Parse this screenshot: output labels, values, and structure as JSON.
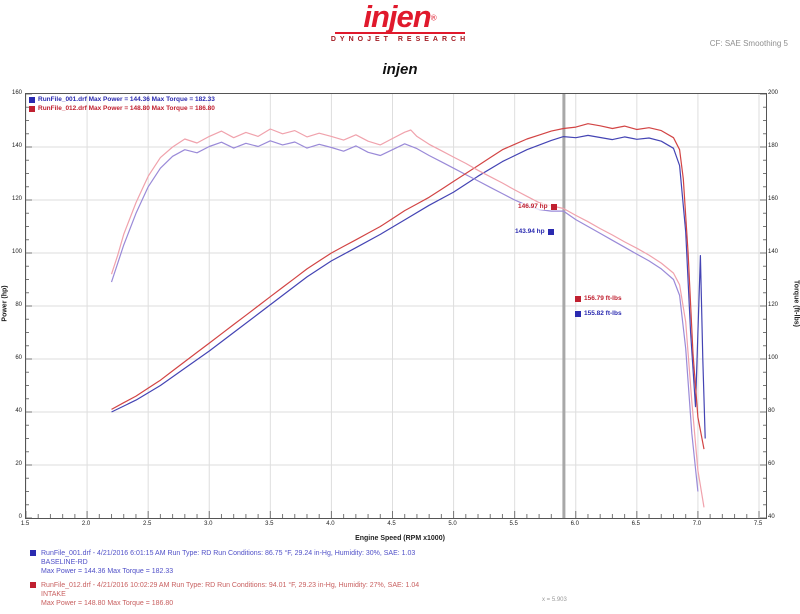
{
  "header": {
    "logo_text": "injen",
    "logo_registered": "®",
    "logo_subtitle": "DYNOJET RESEARCH",
    "top_right_note": "CF: SAE    Smoothing 5",
    "chart_title": "injen"
  },
  "colors": {
    "accent_red": "#e0192c",
    "baseline_power": "#4444b4",
    "baseline_torque": "#9a8ad8",
    "intake_power": "#d24444",
    "intake_torque": "#f0a2ac",
    "cursor_gray": "#a8a8a8",
    "grid_gray": "#dedede"
  },
  "runs": [
    {
      "file": "RunFile_001.drf",
      "legend": "RunFile_001.drf  Max Power = 144.36   Max Torque = 182.33",
      "marker_color": "#2a2ab0",
      "text_color": "#5050c8",
      "footer1": "RunFile_001.drf - 4/21/2016 6:01:15 AM   Run Type: RD   Run Conditions: 86.75 °F, 29.24 in-Hg, Humidity: 30%, SAE: 1.03",
      "footer2": "BASELINE-RD",
      "footer3": "Max Power = 144.36  Max Torque = 182.33"
    },
    {
      "file": "RunFile_012.drf",
      "legend": "RunFile_012.drf  Max Power = 148.80   Max Torque = 186.80",
      "marker_color": "#c02030",
      "text_color": "#c86060",
      "footer1": "RunFile_012.drf - 4/21/2016 10:02:29 AM   Run Type: RD   Run Conditions: 94.01 °F, 29.23 in-Hg, Humidity: 27%, SAE: 1.04",
      "footer2": "INTAKE",
      "footer3": "Max Power = 148.80  Max Torque = 186.80"
    }
  ],
  "cursor": {
    "x_label": "x = 5.903",
    "power_labels": [
      {
        "text": "146.97 hp",
        "color": "#c02030"
      },
      {
        "text": "143.94 hp",
        "color": "#2a2ab0"
      }
    ],
    "torque_labels": [
      {
        "text": "156.79 ft-lbs",
        "color": "#c02030"
      },
      {
        "text": "155.82 ft-lbs",
        "color": "#2a2ab0"
      }
    ]
  },
  "chart_data": {
    "type": "line",
    "title": "injen",
    "xlabel": "Engine Speed (RPM x1000)",
    "x_range": [
      1.5,
      7.5
    ],
    "x_ticks": [
      "1.5",
      "2.0",
      "2.5",
      "3.0",
      "3.5",
      "4.0",
      "4.5",
      "5.0",
      "5.5",
      "6.0",
      "6.5",
      "7.0",
      "7.5"
    ],
    "y_left": {
      "label": "Power (hp)",
      "range": [
        0,
        160
      ],
      "ticks": [
        "160",
        "140",
        "120",
        "100",
        "80",
        "60",
        "40",
        "20",
        "0"
      ]
    },
    "y_right": {
      "label": "Torque (ft-lbs)",
      "range": [
        40,
        200
      ],
      "ticks": [
        "200",
        "180",
        "160",
        "140",
        "120",
        "100",
        "80",
        "60",
        "40"
      ]
    },
    "grid": true,
    "legend_position": "top-left",
    "cursor_x": 5.903,
    "series": [
      {
        "name": "RunFile_001 Power (hp)",
        "axis": "left",
        "color": "#4444b4",
        "points": [
          [
            2.2,
            40
          ],
          [
            2.4,
            44.5
          ],
          [
            2.6,
            50
          ],
          [
            2.8,
            56.5
          ],
          [
            3.0,
            63
          ],
          [
            3.2,
            70
          ],
          [
            3.4,
            77
          ],
          [
            3.6,
            84
          ],
          [
            3.8,
            91
          ],
          [
            4.0,
            97
          ],
          [
            4.2,
            102
          ],
          [
            4.4,
            107
          ],
          [
            4.6,
            112.5
          ],
          [
            4.8,
            118
          ],
          [
            5.0,
            123
          ],
          [
            5.2,
            129
          ],
          [
            5.4,
            134.5
          ],
          [
            5.6,
            139
          ],
          [
            5.8,
            142.5
          ],
          [
            5.9,
            143.94
          ],
          [
            6.0,
            143.5
          ],
          [
            6.1,
            144.36
          ],
          [
            6.2,
            143.6
          ],
          [
            6.3,
            142.8
          ],
          [
            6.4,
            143.8
          ],
          [
            6.5,
            142.9
          ],
          [
            6.6,
            143.4
          ],
          [
            6.7,
            142.2
          ],
          [
            6.8,
            139.5
          ],
          [
            6.85,
            133
          ],
          [
            6.9,
            108
          ],
          [
            6.94,
            70
          ],
          [
            6.98,
            42
          ],
          [
            7.02,
            99
          ],
          [
            7.04,
            60
          ],
          [
            7.06,
            30
          ]
        ]
      },
      {
        "name": "RunFile_001 Torque (ft-lbs)",
        "axis": "right",
        "color": "#9a8ad8",
        "points": [
          [
            2.2,
            129
          ],
          [
            2.3,
            143
          ],
          [
            2.4,
            155
          ],
          [
            2.5,
            165
          ],
          [
            2.6,
            172
          ],
          [
            2.7,
            176.5
          ],
          [
            2.8,
            179
          ],
          [
            2.9,
            177.8
          ],
          [
            3.0,
            180.2
          ],
          [
            3.1,
            181.8
          ],
          [
            3.2,
            179.6
          ],
          [
            3.3,
            181.4
          ],
          [
            3.4,
            180.2
          ],
          [
            3.5,
            182.33
          ],
          [
            3.6,
            180.8
          ],
          [
            3.7,
            181.9
          ],
          [
            3.8,
            179.6
          ],
          [
            3.9,
            181
          ],
          [
            4.0,
            179.8
          ],
          [
            4.1,
            178.4
          ],
          [
            4.2,
            180.4
          ],
          [
            4.3,
            178
          ],
          [
            4.4,
            176.8
          ],
          [
            4.5,
            179
          ],
          [
            4.6,
            181.2
          ],
          [
            4.7,
            179.4
          ],
          [
            4.8,
            176.8
          ],
          [
            4.9,
            174.4
          ],
          [
            5.0,
            172
          ],
          [
            5.1,
            169.6
          ],
          [
            5.2,
            167.2
          ],
          [
            5.3,
            164.8
          ],
          [
            5.4,
            162.4
          ],
          [
            5.5,
            160
          ],
          [
            5.6,
            158
          ],
          [
            5.7,
            156.4
          ],
          [
            5.8,
            155.8
          ],
          [
            5.9,
            155.82
          ],
          [
            6.0,
            152.6
          ],
          [
            6.1,
            150
          ],
          [
            6.2,
            147.4
          ],
          [
            6.3,
            144.8
          ],
          [
            6.4,
            142.2
          ],
          [
            6.5,
            139.6
          ],
          [
            6.6,
            137
          ],
          [
            6.7,
            134
          ],
          [
            6.8,
            130
          ],
          [
            6.85,
            124
          ],
          [
            6.9,
            104
          ],
          [
            6.95,
            72
          ],
          [
            7.0,
            50
          ]
        ]
      },
      {
        "name": "RunFile_012 Power (hp)",
        "axis": "left",
        "color": "#d24444",
        "points": [
          [
            2.2,
            41
          ],
          [
            2.3,
            43.5
          ],
          [
            2.4,
            46
          ],
          [
            2.5,
            49
          ],
          [
            2.6,
            52
          ],
          [
            2.7,
            55.5
          ],
          [
            2.8,
            59
          ],
          [
            2.9,
            62.5
          ],
          [
            3.0,
            66
          ],
          [
            3.1,
            69.5
          ],
          [
            3.2,
            73
          ],
          [
            3.3,
            76.5
          ],
          [
            3.4,
            80
          ],
          [
            3.5,
            83.5
          ],
          [
            3.6,
            87
          ],
          [
            3.7,
            90.5
          ],
          [
            3.8,
            94
          ],
          [
            3.9,
            97
          ],
          [
            4.0,
            100
          ],
          [
            4.1,
            102.5
          ],
          [
            4.2,
            105
          ],
          [
            4.3,
            107.5
          ],
          [
            4.4,
            110
          ],
          [
            4.5,
            113
          ],
          [
            4.6,
            116
          ],
          [
            4.7,
            118.5
          ],
          [
            4.8,
            121
          ],
          [
            4.9,
            124
          ],
          [
            5.0,
            127
          ],
          [
            5.1,
            130
          ],
          [
            5.2,
            133
          ],
          [
            5.3,
            136
          ],
          [
            5.4,
            139
          ],
          [
            5.5,
            141
          ],
          [
            5.6,
            143
          ],
          [
            5.7,
            144.5
          ],
          [
            5.8,
            146
          ],
          [
            5.9,
            146.97
          ],
          [
            6.0,
            147.5
          ],
          [
            6.1,
            148.8
          ],
          [
            6.2,
            148.0
          ],
          [
            6.3,
            147.0
          ],
          [
            6.4,
            147.9
          ],
          [
            6.5,
            146.6
          ],
          [
            6.6,
            147.3
          ],
          [
            6.7,
            146.2
          ],
          [
            6.8,
            143.5
          ],
          [
            6.85,
            139
          ],
          [
            6.88,
            128
          ],
          [
            6.92,
            100
          ],
          [
            6.96,
            62
          ],
          [
            7.0,
            38
          ],
          [
            7.05,
            26
          ]
        ]
      },
      {
        "name": "RunFile_012 Torque (ft-lbs)",
        "axis": "right",
        "color": "#f0a2ac",
        "points": [
          [
            2.2,
            132
          ],
          [
            2.25,
            139
          ],
          [
            2.3,
            147
          ],
          [
            2.35,
            153
          ],
          [
            2.4,
            159
          ],
          [
            2.45,
            164
          ],
          [
            2.5,
            169
          ],
          [
            2.6,
            176
          ],
          [
            2.7,
            180
          ],
          [
            2.8,
            183
          ],
          [
            2.9,
            181.5
          ],
          [
            3.0,
            184
          ],
          [
            3.1,
            186
          ],
          [
            3.2,
            183.5
          ],
          [
            3.3,
            185.5
          ],
          [
            3.4,
            184
          ],
          [
            3.5,
            186.8
          ],
          [
            3.6,
            185
          ],
          [
            3.7,
            186.2
          ],
          [
            3.8,
            183.8
          ],
          [
            3.9,
            185.2
          ],
          [
            4.0,
            184
          ],
          [
            4.1,
            182.6
          ],
          [
            4.2,
            184.6
          ],
          [
            4.3,
            182.2
          ],
          [
            4.4,
            180.8
          ],
          [
            4.5,
            183.2
          ],
          [
            4.6,
            185.6
          ],
          [
            4.65,
            186.4
          ],
          [
            4.7,
            184
          ],
          [
            4.8,
            181
          ],
          [
            4.9,
            178.6
          ],
          [
            5.0,
            176.2
          ],
          [
            5.1,
            173.8
          ],
          [
            5.2,
            171.2
          ],
          [
            5.3,
            168.8
          ],
          [
            5.4,
            166.4
          ],
          [
            5.5,
            163.8
          ],
          [
            5.6,
            161.4
          ],
          [
            5.7,
            159
          ],
          [
            5.8,
            157.8
          ],
          [
            5.9,
            156.79
          ],
          [
            6.0,
            154.2
          ],
          [
            6.1,
            151.8
          ],
          [
            6.2,
            149.2
          ],
          [
            6.3,
            146.8
          ],
          [
            6.4,
            144.2
          ],
          [
            6.5,
            141.8
          ],
          [
            6.6,
            139.2
          ],
          [
            6.7,
            136.2
          ],
          [
            6.8,
            132.4
          ],
          [
            6.85,
            128
          ],
          [
            6.9,
            114
          ],
          [
            6.95,
            84
          ],
          [
            7.0,
            58
          ],
          [
            7.05,
            44
          ]
        ]
      }
    ]
  }
}
